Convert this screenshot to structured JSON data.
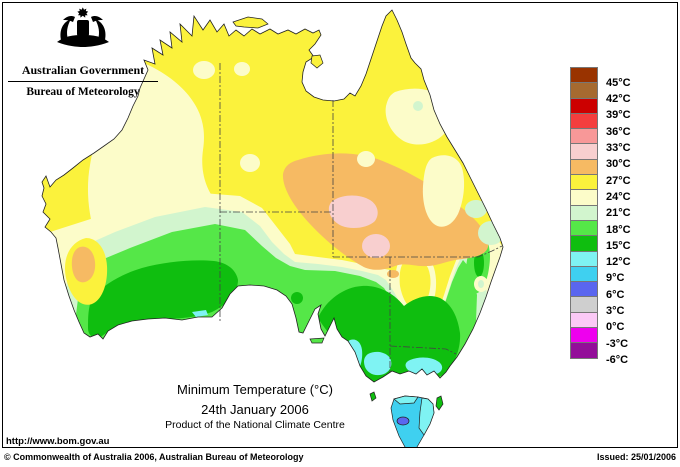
{
  "header": {
    "government": "Australian Government",
    "bureau": "Bureau of Meteorology"
  },
  "icons": {
    "logo": "australian-coat-of-arms"
  },
  "caption": {
    "title": "Minimum Temperature (°C)",
    "date": "24th January 2006",
    "product": "Product of the National Climate Centre"
  },
  "url": "http://www.bom.gov.au",
  "footer": {
    "copyright": "© Commonwealth of Australia 2006, Australian Bureau of Meteorology",
    "issued": "Issued: 25/01/2006"
  },
  "colors": {
    "sea": "#FFFFFF",
    "coastline": "#222222",
    "state_border": "#444444",
    "t45plus": "#993300",
    "t42_45": "#A66A30",
    "t39_42": "#CC0000",
    "t36_39": "#F43E3E",
    "t33_36": "#F89898",
    "t30_33": "#F8CFCF",
    "t27_30": "#F6BA63",
    "t24_27": "#FBF23C",
    "t21_24": "#FCFCC9",
    "t18_21": "#D2F5CE",
    "t15_18": "#55E748",
    "t12_15": "#0FBE0F",
    "t9_12": "#7FF3F3",
    "t6_9": "#3FD0F0",
    "t3_6": "#5A66EF",
    "t0_3": "#CFCFCF",
    "tm3_0": "#FBC9F6",
    "tm6_m3": "#EE00EE",
    "tm6less": "#930E99"
  },
  "legend": {
    "boundary_labels": [
      "45°C",
      "42°C",
      "39°C",
      "36°C",
      "33°C",
      "30°C",
      "27°C",
      "24°C",
      "21°C",
      "18°C",
      "15°C",
      "12°C",
      "9°C",
      "6°C",
      "3°C",
      "0°C",
      "-3°C",
      "-6°C"
    ],
    "bands": [
      {
        "range": "above 45C",
        "color": "#993300"
      },
      {
        "range": "42-45C",
        "color": "#A66A30"
      },
      {
        "range": "39-42C",
        "color": "#CC0000"
      },
      {
        "range": "36-39C",
        "color": "#F43E3E"
      },
      {
        "range": "33-36C",
        "color": "#F89898"
      },
      {
        "range": "30-33C",
        "color": "#F8CFCF"
      },
      {
        "range": "27-30C",
        "color": "#F6BA63"
      },
      {
        "range": "24-27C",
        "color": "#FBF23C"
      },
      {
        "range": "21-24C",
        "color": "#FCFCC9"
      },
      {
        "range": "18-21C",
        "color": "#D2F5CE"
      },
      {
        "range": "15-18C",
        "color": "#55E748"
      },
      {
        "range": "12-15C",
        "color": "#0FBE0F"
      },
      {
        "range": "9-12C",
        "color": "#7FF3F3"
      },
      {
        "range": "6-9C",
        "color": "#3FD0F0"
      },
      {
        "range": "3-6C",
        "color": "#5A66EF"
      },
      {
        "range": "0-3C",
        "color": "#CFCFCF"
      },
      {
        "range": "-3-0C",
        "color": "#FBC9F6"
      },
      {
        "range": "-6--3C",
        "color": "#EE00EE"
      },
      {
        "range": "below -6C",
        "color": "#930E99"
      }
    ]
  },
  "chart_data": {
    "type": "choropleth-map",
    "region": "Australia",
    "variable": "Minimum Temperature (°C)",
    "date": "24th January 2006",
    "issuer": "Bureau of Meteorology, National Climate Centre",
    "temperature_bands_degC": [
      "above 45",
      "42-45",
      "39-42",
      "36-39",
      "33-36",
      "30-33",
      "27-30",
      "24-27",
      "21-24",
      "18-21",
      "15-18",
      "12-15",
      "9-12",
      "6-9",
      "3-6",
      "0-3",
      "-3-0",
      "-6--3",
      "below -6"
    ],
    "band_colors": [
      "#993300",
      "#A66A30",
      "#CC0000",
      "#F43E3E",
      "#F89898",
      "#F8CFCF",
      "#F6BA63",
      "#FBF23C",
      "#FCFCC9",
      "#D2F5CE",
      "#55E748",
      "#0FBE0F",
      "#7FF3F3",
      "#3FD0F0",
      "#5A66EF",
      "#CFCFCF",
      "#FBC9F6",
      "#EE00EE",
      "#930E99"
    ],
    "observed_pattern": [
      {
        "area": "northern Australia and most of the interior",
        "band_degC": "24-27"
      },
      {
        "area": "central Australia around NT/SA/QLD corner",
        "band_degC": "27-30"
      },
      {
        "area": "two cores in central Australia",
        "band_degC": "30-33"
      },
      {
        "area": "inland Western Australia and south-west Queensland",
        "band_degC": "21-24"
      },
      {
        "area": "small patch inland of the WA lower west coast",
        "band_degC": "27-30"
      },
      {
        "area": "southern WA, SA agricultural districts, western NSW",
        "band_degC": "18-21 to 15-18"
      },
      {
        "area": "south-west WA corner, south-east SA, Victoria, southern NSW, NSW ranges",
        "band_degC": "12-15"
      },
      {
        "area": "patches in central/eastern Victoria and Snowy Mountains",
        "band_degC": "9-12"
      },
      {
        "area": "Tasmania mostly",
        "band_degC": "6-9"
      },
      {
        "area": "eastern Tasmania coast",
        "band_degC": "9-12"
      },
      {
        "area": "central-west Tasmania highlands",
        "band_degC": "3-6"
      }
    ]
  }
}
